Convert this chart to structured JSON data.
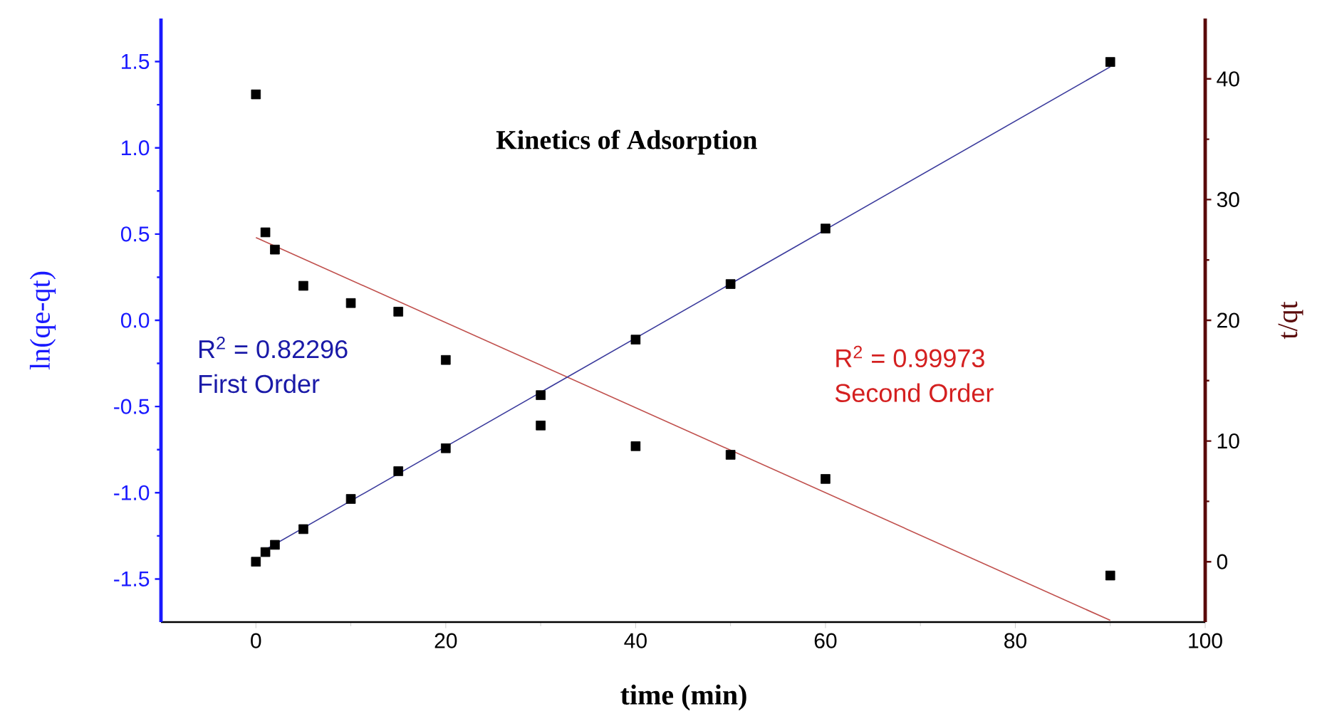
{
  "chart_data": {
    "type": "scatter",
    "title": "Kinetics of Adsorption",
    "xlabel": "time (min)",
    "ylabel": "ln(qe-qt)",
    "y2label": "t/qt",
    "xlim": [
      -10,
      100
    ],
    "xticks": [
      0,
      20,
      40,
      60,
      80,
      100
    ],
    "ylim": [
      -1.75,
      1.75
    ],
    "yticks": [
      -1.5,
      {
        "value": -1.0,
        "label": "-1.0"
      },
      -0.5,
      {
        "value": 0.0,
        "label": "0.0"
      },
      0.5,
      {
        "value": 1.0,
        "label": "1.0"
      },
      1.5
    ],
    "y2lim": [
      -5,
      45
    ],
    "y2ticks": [
      0,
      10,
      20,
      30,
      40
    ],
    "legend": false,
    "grid": false,
    "series": [
      {
        "marker": "square",
        "color": "#000000",
        "x": [
          0,
          1,
          2,
          5,
          10,
          15,
          20,
          30,
          40,
          50,
          60,
          90
        ],
        "values": [
          1.31,
          0.51,
          0.41,
          0.2,
          0.1,
          0.05,
          -0.23,
          -0.61,
          -0.73,
          -0.78,
          -0.92,
          -1.48
        ]
      },
      {
        "marker": "square",
        "color": "#000000",
        "axis": "y2",
        "x": [
          0,
          1,
          2,
          5,
          10,
          15,
          20,
          30,
          40,
          50,
          60,
          90
        ],
        "values": [
          0.0,
          0.8,
          1.4,
          2.7,
          5.2,
          7.5,
          9.4,
          13.8,
          18.4,
          23.0,
          27.6,
          41.4
        ]
      },
      {
        "type": "line",
        "marker": "none",
        "color": "#c0504d",
        "x": [
          0,
          90
        ],
        "values": [
          0.48,
          -1.74
        ]
      },
      {
        "type": "line",
        "marker": "none",
        "color": "#3a3a9c",
        "axis": "y2",
        "x": [
          1,
          90
        ],
        "values": [
          1.0,
          41.0
        ]
      }
    ],
    "annotations": [
      "R$^{2}$ = 0.82296",
      "First  Order",
      "R$^{2}$ = 0.99973",
      "Second Order"
    ]
  }
}
